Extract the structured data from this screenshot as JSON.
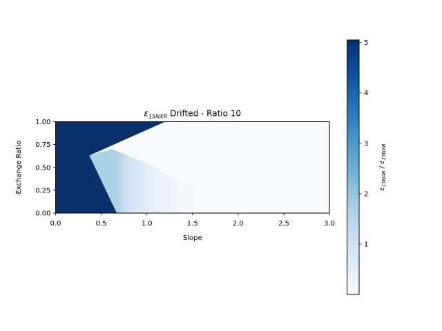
{
  "chart_data": {
    "type": "heatmap",
    "title": "ε15NXR Drifted - Ratio 10",
    "title_parts": {
      "symbol": "ε",
      "subscript": "15NXR",
      "suffix": " Drifted - Ratio 10"
    },
    "xlabel": "Slope",
    "ylabel": "Exchange Ratio",
    "xlim": [
      0.0,
      3.0
    ],
    "ylim": [
      0.0,
      1.0
    ],
    "x_ticks": [
      "0.0",
      "0.5",
      "1.0",
      "1.5",
      "2.0",
      "2.5",
      "3.0"
    ],
    "y_ticks": [
      "0.00",
      "0.25",
      "0.50",
      "0.75",
      "1.00"
    ],
    "colormap": "Blues",
    "colorbar": {
      "label_parts": {
        "symbol1": "ε",
        "sub1": "15NAR",
        "sep": " / ",
        "symbol2": "ε",
        "sub2": "15NXR"
      },
      "vmin": 0.0,
      "vmax": 5.05,
      "ticks": [
        "1",
        "2",
        "3",
        "4",
        "5"
      ]
    },
    "regions": {
      "saturated_upper_boundary": [
        [
          0.37,
          0.63
        ],
        [
          1.2,
          1.0
        ]
      ],
      "saturated_lower_boundary": [
        [
          0.37,
          0.63
        ],
        [
          0.67,
          0.0
        ]
      ],
      "saturated_value": 5.05,
      "gradient_near_value": 1.0,
      "background_value": 0.05
    }
  },
  "colors": {
    "saturated": "#08306b",
    "background": "#f7fbff",
    "near_boundary": "#c6dbef"
  }
}
